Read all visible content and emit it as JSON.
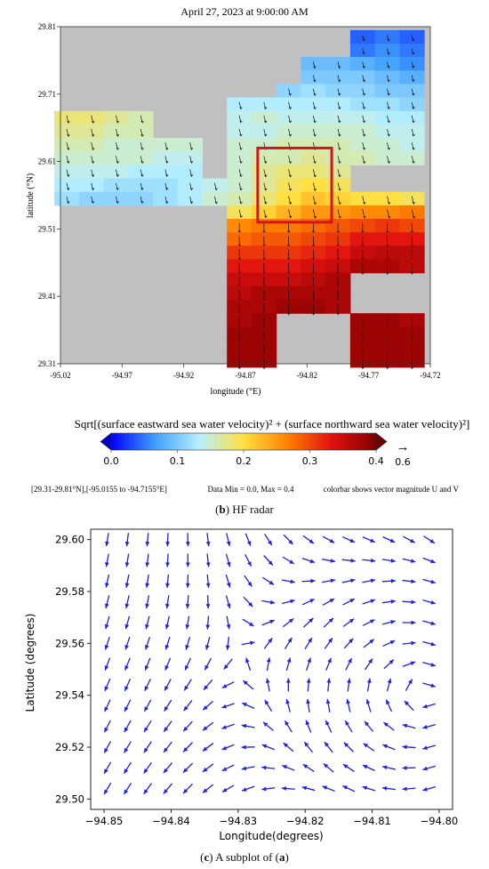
{
  "panel_b": {
    "caption_letter": "b",
    "caption_text": "HF radar",
    "chart_data": {
      "type": "heatmap",
      "title": "April 27, 2023 at 9:00:00 AM",
      "xlabel": "longitude (°E)",
      "ylabel": "latitude (°N)",
      "xlim": [
        -95.02,
        -94.72
      ],
      "ylim": [
        29.31,
        29.81
      ],
      "x_ticks": [
        "-95.02",
        "-94.97",
        "-94.92",
        "-94.87",
        "-94.82",
        "-94.77",
        "-94.72"
      ],
      "y_ticks": [
        "29.31",
        "29.41",
        "29.51",
        "29.61",
        "29.71",
        "29.81"
      ],
      "land_color": "#c0c0c0",
      "rows_lat": [
        29.795,
        29.775,
        29.755,
        29.735,
        29.715,
        29.695,
        29.675,
        29.655,
        29.635,
        29.615,
        29.595,
        29.575,
        29.555,
        29.535,
        29.515,
        29.495,
        29.475,
        29.455,
        29.435,
        29.415,
        29.395,
        29.375,
        29.355,
        29.335,
        29.315
      ],
      "cols_lon": [
        -95.015,
        -94.995,
        -94.975,
        -94.955,
        -94.935,
        -94.915,
        -94.895,
        -94.875,
        -94.855,
        -94.835,
        -94.815,
        -94.795,
        -94.775,
        -94.755,
        -94.735
      ],
      "magnitude_grid": [
        [
          null,
          null,
          null,
          null,
          null,
          null,
          null,
          null,
          null,
          null,
          null,
          null,
          0.04,
          0.05,
          0.04
        ],
        [
          null,
          null,
          null,
          null,
          null,
          null,
          null,
          null,
          null,
          null,
          null,
          null,
          0.05,
          0.06,
          0.05
        ],
        [
          null,
          null,
          null,
          null,
          null,
          null,
          null,
          null,
          null,
          null,
          0.09,
          0.09,
          0.08,
          0.07,
          0.06
        ],
        [
          null,
          null,
          null,
          null,
          null,
          null,
          null,
          null,
          null,
          null,
          0.1,
          0.1,
          0.1,
          0.09,
          0.08
        ],
        [
          null,
          null,
          null,
          null,
          null,
          null,
          null,
          null,
          null,
          0.11,
          0.12,
          0.11,
          0.11,
          0.1,
          0.1
        ],
        [
          null,
          null,
          null,
          null,
          null,
          null,
          null,
          0.13,
          0.13,
          0.13,
          0.13,
          0.13,
          0.12,
          0.12,
          0.11
        ],
        [
          0.18,
          0.18,
          0.17,
          0.16,
          null,
          null,
          null,
          0.14,
          0.15,
          0.14,
          0.14,
          0.14,
          0.14,
          0.13,
          0.13
        ],
        [
          0.17,
          0.17,
          0.16,
          0.16,
          null,
          null,
          null,
          0.14,
          0.14,
          0.15,
          0.15,
          0.15,
          0.15,
          0.14,
          0.14
        ],
        [
          0.16,
          0.16,
          0.15,
          0.15,
          0.15,
          0.15,
          null,
          0.15,
          0.15,
          0.16,
          0.16,
          0.16,
          0.15,
          0.15,
          0.14
        ],
        [
          0.15,
          0.15,
          0.15,
          0.15,
          0.14,
          0.14,
          null,
          0.15,
          0.16,
          0.16,
          0.17,
          0.16,
          0.16,
          0.15,
          0.15
        ],
        [
          0.14,
          0.14,
          0.14,
          0.13,
          0.13,
          0.13,
          null,
          0.15,
          0.17,
          0.18,
          0.18,
          0.17,
          null,
          null,
          null
        ],
        [
          0.13,
          0.13,
          0.12,
          0.12,
          0.12,
          0.13,
          0.14,
          0.15,
          0.17,
          0.19,
          0.2,
          0.19,
          null,
          null,
          null
        ],
        [
          0.12,
          0.11,
          0.11,
          0.11,
          0.12,
          0.13,
          0.15,
          0.16,
          0.18,
          0.2,
          0.22,
          0.21,
          0.2,
          0.2,
          0.19
        ],
        [
          null,
          null,
          null,
          null,
          null,
          null,
          null,
          0.19,
          0.21,
          0.23,
          0.25,
          0.25,
          0.26,
          0.26,
          0.27
        ],
        [
          null,
          null,
          null,
          null,
          null,
          null,
          null,
          0.26,
          0.27,
          0.27,
          0.28,
          0.29,
          0.3,
          0.31,
          0.3
        ],
        [
          null,
          null,
          null,
          null,
          null,
          null,
          null,
          0.28,
          0.29,
          0.29,
          0.3,
          0.31,
          0.33,
          0.33,
          0.33
        ],
        [
          null,
          null,
          null,
          null,
          null,
          null,
          null,
          0.31,
          0.31,
          0.31,
          0.32,
          0.33,
          0.35,
          0.36,
          0.36
        ],
        [
          null,
          null,
          null,
          null,
          null,
          null,
          null,
          0.33,
          0.33,
          0.33,
          0.34,
          0.35,
          0.37,
          0.37,
          0.36
        ],
        [
          null,
          null,
          null,
          null,
          null,
          null,
          null,
          0.35,
          0.35,
          0.35,
          0.36,
          0.37,
          null,
          null,
          null
        ],
        [
          null,
          null,
          null,
          null,
          null,
          null,
          null,
          0.36,
          0.37,
          0.37,
          0.37,
          0.37,
          null,
          null,
          null
        ],
        [
          null,
          null,
          null,
          null,
          null,
          null,
          null,
          0.37,
          0.37,
          0.38,
          0.38,
          0.37,
          null,
          null,
          null
        ],
        [
          null,
          null,
          null,
          null,
          null,
          null,
          null,
          0.37,
          0.38,
          null,
          null,
          null,
          0.38,
          0.38,
          0.37
        ],
        [
          null,
          null,
          null,
          null,
          null,
          null,
          null,
          0.38,
          0.38,
          null,
          null,
          null,
          0.38,
          0.38,
          0.38
        ],
        [
          null,
          null,
          null,
          null,
          null,
          null,
          null,
          0.38,
          0.38,
          null,
          null,
          null,
          0.38,
          0.38,
          0.38
        ],
        [
          null,
          null,
          null,
          null,
          null,
          null,
          null,
          0.38,
          0.38,
          null,
          null,
          null,
          0.38,
          0.38,
          0.38
        ]
      ],
      "highlight_box": {
        "lon": [
          -94.86,
          -94.8
        ],
        "lat": [
          29.52,
          29.63
        ],
        "color": "#d01818"
      },
      "colorbar": {
        "title": "Sqrt[(surface eastward sea water velocity)² + (surface northward sea water velocity)²]",
        "ticks": [
          "0.0",
          "0.1",
          "0.2",
          "0.3",
          "0.4"
        ],
        "range": [
          0.0,
          0.4
        ],
        "stops": [
          "#0000ff",
          "#40a0ff",
          "#b8f0ff",
          "#ffe040",
          "#ff8000",
          "#e01010",
          "#800000"
        ],
        "vector_ref_label": "0.6",
        "vector_ref_glyph": "→"
      },
      "footer_left": "[29.31-29.81°N],[-95.0155 to -94.7155°E]",
      "footer_center": "Data Min = 0.0, Max = 0.4",
      "footer_right": "colorbar shows vector magnitude U and V"
    }
  },
  "panel_c": {
    "caption_text": "A subplot of",
    "caption_ref": "a",
    "chart_data": {
      "type": "quiver",
      "xlabel": "Longitude(degrees)",
      "ylabel": "Latitude (degrees)",
      "xlim": [
        -94.852,
        -94.798
      ],
      "ylim": [
        29.496,
        29.604
      ],
      "x_ticks": [
        -94.85,
        -94.84,
        -94.83,
        -94.82,
        -94.81,
        -94.8
      ],
      "x_tick_labels": [
        "−94.85",
        "−94.84",
        "−94.83",
        "−94.82",
        "−94.81",
        "−94.80"
      ],
      "y_ticks": [
        29.5,
        29.52,
        29.54,
        29.56,
        29.58,
        29.6
      ],
      "y_tick_labels": [
        "29.50",
        "29.52",
        "29.54",
        "29.56",
        "29.58",
        "29.60"
      ],
      "arrow_color": "#1f1fe6",
      "grid_lon": [
        -94.8495,
        -94.8465,
        -94.8435,
        -94.8405,
        -94.8375,
        -94.8345,
        -94.8315,
        -94.8285,
        -94.8255,
        -94.8225,
        -94.8195,
        -94.8165,
        -94.8135,
        -94.8105,
        -94.8075,
        -94.8045,
        -94.8015
      ],
      "grid_lat": [
        29.6,
        29.592,
        29.584,
        29.576,
        29.568,
        29.56,
        29.552,
        29.544,
        29.536,
        29.528,
        29.52,
        29.512,
        29.504
      ],
      "vortex_center": [
        -94.8015,
        29.541
      ],
      "description_note": ""
    }
  }
}
